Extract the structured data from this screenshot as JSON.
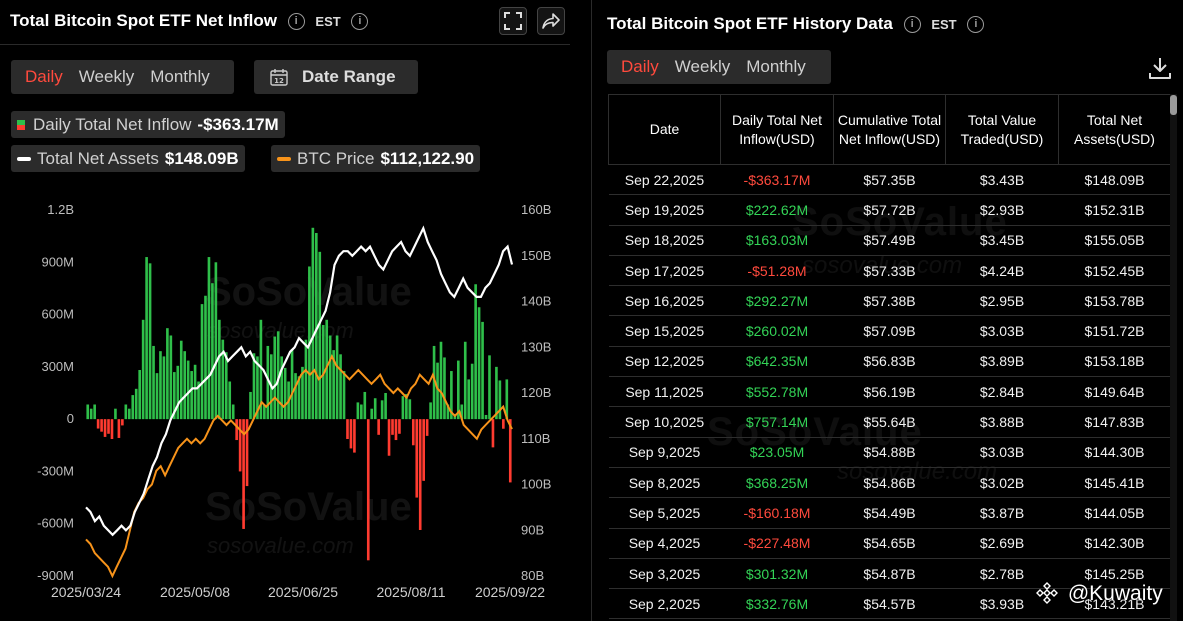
{
  "inflow_panel": {
    "title": "Total Bitcoin Spot ETF Net Inflow",
    "timezone": "EST",
    "tabs": [
      "Daily",
      "Weekly",
      "Monthly"
    ],
    "active_tab": "Daily",
    "date_range_label": "Date Range",
    "calendar_icon_text": "12",
    "legend": {
      "inflow_label": "Daily Total Net Inflow",
      "inflow_value": "-$363.17M",
      "assets_label": "Total Net Assets",
      "assets_value": "$148.09B",
      "btc_label": "BTC Price",
      "btc_value": "$112,122.90"
    },
    "watermark": "SoSoValue",
    "watermark_sub": "sosovalue.com"
  },
  "history_panel": {
    "title": "Total Bitcoin Spot ETF History Data",
    "timezone": "EST",
    "tabs": [
      "Daily",
      "Weekly",
      "Monthly"
    ],
    "active_tab": "Daily",
    "columns": [
      "Date",
      "Daily Total Net Inflow(USD)",
      "Cumulative Total Net Inflow(USD)",
      "Total Value Traded(USD)",
      "Total Net Assets(USD)"
    ],
    "rows": [
      [
        "Sep 22,2025",
        "-$363.17M",
        "$57.35B",
        "$3.43B",
        "$148.09B"
      ],
      [
        "Sep 19,2025",
        "$222.62M",
        "$57.72B",
        "$2.93B",
        "$152.31B"
      ],
      [
        "Sep 18,2025",
        "$163.03M",
        "$57.49B",
        "$3.45B",
        "$155.05B"
      ],
      [
        "Sep 17,2025",
        "-$51.28M",
        "$57.33B",
        "$4.24B",
        "$152.45B"
      ],
      [
        "Sep 16,2025",
        "$292.27M",
        "$57.38B",
        "$2.95B",
        "$153.78B"
      ],
      [
        "Sep 15,2025",
        "$260.02M",
        "$57.09B",
        "$3.03B",
        "$151.72B"
      ],
      [
        "Sep 12,2025",
        "$642.35M",
        "$56.83B",
        "$3.89B",
        "$153.18B"
      ],
      [
        "Sep 11,2025",
        "$552.78M",
        "$56.19B",
        "$2.84B",
        "$149.64B"
      ],
      [
        "Sep 10,2025",
        "$757.14M",
        "$55.64B",
        "$3.88B",
        "$147.83B"
      ],
      [
        "Sep 9,2025",
        "$23.05M",
        "$54.88B",
        "$3.03B",
        "$144.30B"
      ],
      [
        "Sep 8,2025",
        "$368.25M",
        "$54.86B",
        "$3.02B",
        "$145.41B"
      ],
      [
        "Sep 5,2025",
        "-$160.18M",
        "$54.49B",
        "$3.87B",
        "$144.05B"
      ],
      [
        "Sep 4,2025",
        "-$227.48M",
        "$54.65B",
        "$2.69B",
        "$142.30B"
      ],
      [
        "Sep 3,2025",
        "$301.32M",
        "$54.87B",
        "$2.78B",
        "$145.25B"
      ],
      [
        "Sep 2,2025",
        "$332.76M",
        "$54.57B",
        "$3.93B",
        "$143.21B"
      ]
    ],
    "credit": "@Kuwaity"
  },
  "colors": {
    "positive": "#2fbf4a",
    "negative": "#ff3b30",
    "assets_line": "#ffffff",
    "btc_line": "#f7931a",
    "active_tab": "#ff4a3d"
  },
  "icons": [
    "info-icon",
    "fullscreen-icon",
    "share-icon",
    "calendar-icon",
    "download-icon"
  ],
  "chart_data": {
    "type": "bar",
    "x_ticks": [
      "2025/03/24",
      "2025/05/08",
      "2025/06/25",
      "2025/08/11",
      "2025/09/22"
    ],
    "y_left_ticks": [
      "1.2B",
      "900M",
      "600M",
      "300M",
      "0",
      "-300M",
      "-600M",
      "-900M"
    ],
    "y_left_range": [
      -900,
      1200
    ],
    "y_right_ticks": [
      "160B",
      "150B",
      "140B",
      "130B",
      "120B",
      "110B",
      "100B",
      "90B",
      "80B"
    ],
    "y_right_range": [
      80,
      160
    ],
    "series": [
      {
        "name": "Daily Total Net Inflow",
        "type": "bar",
        "values": [
          84,
          60,
          84,
          -54,
          -72,
          -102,
          -84,
          -114,
          60,
          -108,
          -36,
          84,
          60,
          138,
          174,
          282,
          570,
          930,
          894,
          420,
          264,
          390,
          360,
          522,
          480,
          270,
          306,
          450,
          390,
          336,
          276,
          312,
          216,
          660,
          708,
          930,
          780,
          900,
          570,
          456,
          384,
          216,
          84,
          -120,
          -300,
          -630,
          -384,
          156,
          378,
          360,
          570,
          84,
          420,
          372,
          474,
          504,
          360,
          294,
          216,
          402,
          264,
          246,
          300,
          456,
          876,
          1098,
          1068,
          960,
          540,
          570,
          480,
          396,
          480,
          372,
          276,
          -114,
          -168,
          -192,
          96,
          84,
          156,
          -810,
          60,
          120,
          -90,
          108,
          150,
          -210,
          -90,
          -120,
          -84,
          132,
          144,
          114,
          -150,
          -450,
          -636,
          -354,
          -96,
          96,
          420,
          324,
          444,
          354,
          84,
          276,
          30,
          336,
          84,
          444,
          228,
          318,
          774,
          642,
          558,
          24,
          366,
          -162,
          300,
          222,
          -55,
          228,
          -363
        ]
      },
      {
        "name": "Total Net Assets",
        "type": "line",
        "values": [
          95,
          94,
          92,
          93,
          91,
          90,
          89,
          90,
          91,
          90,
          91,
          94,
          96,
          98,
          101,
          104,
          106,
          109,
          111,
          114,
          116,
          118,
          119,
          120,
          121,
          121,
          122,
          123,
          124,
          126,
          128,
          129,
          127,
          128,
          129,
          130,
          128,
          129,
          127,
          126,
          125,
          123,
          121,
          122,
          125,
          127,
          129,
          130,
          132,
          131,
          130,
          132,
          134,
          136,
          138,
          142,
          148,
          150,
          151,
          151,
          150,
          151,
          152,
          151,
          152,
          150,
          148,
          147,
          149,
          151,
          152,
          153,
          151,
          150,
          152,
          154,
          156,
          153,
          151,
          149,
          146,
          144,
          142,
          141,
          143,
          145,
          143,
          142,
          141,
          141,
          143,
          144,
          146,
          148,
          151,
          152,
          148.09
        ]
      },
      {
        "name": "BTC Price",
        "type": "line",
        "values": [
          88,
          87,
          85,
          84,
          83,
          82,
          80,
          82,
          84,
          86,
          90,
          94,
          96,
          97,
          99,
          100,
          103,
          104,
          102,
          104,
          106,
          108,
          109,
          110,
          109,
          110,
          109,
          110,
          112,
          114,
          115,
          114,
          113,
          114,
          113,
          112,
          111,
          112,
          114,
          116,
          118,
          117,
          118,
          119,
          118,
          117,
          118,
          120,
          122,
          124,
          125,
          124,
          125,
          123,
          124,
          126,
          128,
          126,
          125,
          124,
          123,
          124,
          125,
          124,
          123,
          122,
          123,
          124,
          122,
          121,
          120,
          121,
          120,
          119,
          121,
          122,
          124,
          123,
          122,
          124,
          121,
          120,
          118,
          116,
          115,
          116,
          113,
          112,
          111,
          110,
          112,
          113,
          114,
          115,
          116,
          117,
          114,
          112.12
        ]
      }
    ],
    "legend": "top-left",
    "grid": false
  }
}
